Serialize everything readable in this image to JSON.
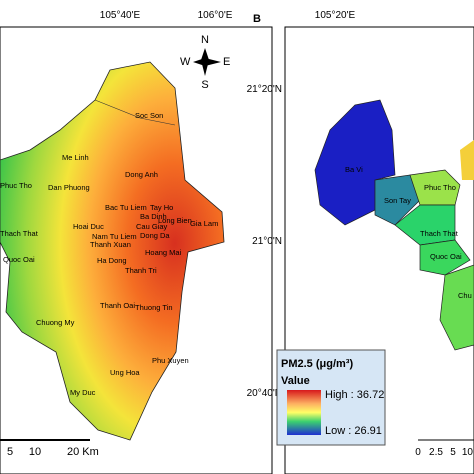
{
  "panel_a": {
    "lon_labels": [
      "105°40'E",
      "106°0'E"
    ],
    "districts": [
      "Soc Son",
      "Me Linh",
      "Dong Anh",
      "Phuc Tho",
      "Dan Phuong",
      "Bac Tu Liem",
      "Tay Ho",
      "Long Bien",
      "Gia Lam",
      "Ba Dinh",
      "Cau Giay",
      "Hoai Duc",
      "Nam Tu Liem",
      "Dong Da",
      "Thach That",
      "Thanh Xuan",
      "Ha Dong",
      "Hoang Mai",
      "Quoc Oai",
      "Thanh Tri",
      "Chuong My",
      "Thanh Oai",
      "Thuong Tin",
      "Phu Xuyen",
      "Ung Hoa",
      "My Duc"
    ],
    "compass": [
      "N",
      "S",
      "E",
      "W"
    ],
    "scale": [
      "5",
      "10",
      "20 Km"
    ]
  },
  "panel_b": {
    "label": "B",
    "lon_label": "105°20'E",
    "lat_labels": [
      "21°20'N",
      "21°0'N",
      "20°40'N"
    ],
    "districts": [
      "Ba Vi",
      "Son Tay",
      "Phuc Tho",
      "Thach That",
      "Quoc Oai",
      "Chu"
    ],
    "scale": [
      "0",
      "2.5",
      "5",
      "10"
    ]
  },
  "legend": {
    "title": "PM2.5 (μg/m³)",
    "subtitle": "Value",
    "high": "High : 36.72",
    "low": "Low : 26.91"
  }
}
